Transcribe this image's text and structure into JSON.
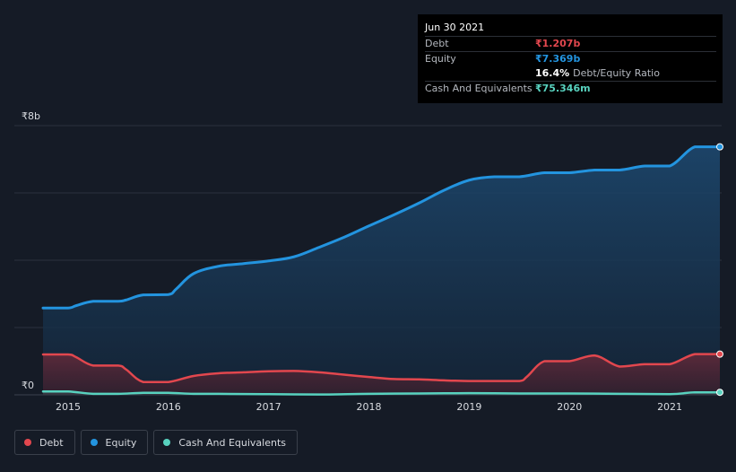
{
  "tooltip": {
    "date": "Jun 30 2021",
    "debt_label": "Debt",
    "debt_value": "₹1.207b",
    "equity_label": "Equity",
    "equity_value": "₹7.369b",
    "ratio_value": "16.4%",
    "ratio_label": "Debt/Equity Ratio",
    "cash_label": "Cash And Equivalents",
    "cash_value": "₹75.346m"
  },
  "colors": {
    "debt": "#e2474e",
    "equity": "#2394df",
    "cash": "#58d2bf"
  },
  "legend": [
    {
      "label": "Debt",
      "key": "debt"
    },
    {
      "label": "Equity",
      "key": "equity"
    },
    {
      "label": "Cash And Equivalents",
      "key": "cash"
    }
  ],
  "chart_data": {
    "type": "area",
    "title": "",
    "xlabel": "",
    "ylabel": "",
    "y_unit": "₹ billions",
    "ylim": [
      0,
      8
    ],
    "xlim": [
      2014.75,
      2021.5
    ],
    "y_tick_labels": [
      {
        "value": 8,
        "label": "₹8b"
      },
      {
        "value": 0,
        "label": "₹0"
      }
    ],
    "x_ticks": [
      2015,
      2016,
      2017,
      2018,
      2019,
      2020,
      2021
    ],
    "grid": true,
    "legend_position": "bottom-left",
    "series": [
      {
        "name": "Equity",
        "key": "equity",
        "points": [
          [
            2014.75,
            2.58
          ],
          [
            2015.0,
            2.58
          ],
          [
            2015.08,
            2.65
          ],
          [
            2015.25,
            2.78
          ],
          [
            2015.5,
            2.78
          ],
          [
            2015.58,
            2.82
          ],
          [
            2015.75,
            2.97
          ],
          [
            2016.0,
            2.98
          ],
          [
            2016.08,
            3.15
          ],
          [
            2016.25,
            3.6
          ],
          [
            2016.5,
            3.82
          ],
          [
            2016.75,
            3.9
          ],
          [
            2017.0,
            3.98
          ],
          [
            2017.25,
            4.1
          ],
          [
            2017.5,
            4.38
          ],
          [
            2017.75,
            4.68
          ],
          [
            2018.0,
            5.02
          ],
          [
            2018.25,
            5.35
          ],
          [
            2018.5,
            5.7
          ],
          [
            2018.75,
            6.08
          ],
          [
            2019.0,
            6.38
          ],
          [
            2019.25,
            6.48
          ],
          [
            2019.5,
            6.48
          ],
          [
            2019.75,
            6.6
          ],
          [
            2020.0,
            6.6
          ],
          [
            2020.25,
            6.68
          ],
          [
            2020.5,
            6.68
          ],
          [
            2020.75,
            6.8
          ],
          [
            2021.0,
            6.8
          ],
          [
            2021.25,
            7.37
          ],
          [
            2021.5,
            7.37
          ]
        ]
      },
      {
        "name": "Debt",
        "key": "debt",
        "points": [
          [
            2014.75,
            1.2
          ],
          [
            2015.0,
            1.2
          ],
          [
            2015.08,
            1.12
          ],
          [
            2015.25,
            0.87
          ],
          [
            2015.5,
            0.87
          ],
          [
            2015.58,
            0.75
          ],
          [
            2015.75,
            0.38
          ],
          [
            2016.0,
            0.38
          ],
          [
            2016.25,
            0.56
          ],
          [
            2016.5,
            0.64
          ],
          [
            2016.75,
            0.67
          ],
          [
            2017.0,
            0.7
          ],
          [
            2017.25,
            0.71
          ],
          [
            2017.5,
            0.67
          ],
          [
            2017.75,
            0.6
          ],
          [
            2018.0,
            0.53
          ],
          [
            2018.25,
            0.47
          ],
          [
            2018.5,
            0.46
          ],
          [
            2018.75,
            0.43
          ],
          [
            2019.0,
            0.41
          ],
          [
            2019.25,
            0.41
          ],
          [
            2019.5,
            0.41
          ],
          [
            2019.58,
            0.55
          ],
          [
            2019.75,
            1.0
          ],
          [
            2020.0,
            1.0
          ],
          [
            2020.25,
            1.17
          ],
          [
            2020.5,
            0.84
          ],
          [
            2020.75,
            0.91
          ],
          [
            2021.0,
            0.91
          ],
          [
            2021.25,
            1.21
          ],
          [
            2021.5,
            1.21
          ]
        ]
      },
      {
        "name": "Cash And Equivalents",
        "key": "cash",
        "points": [
          [
            2014.75,
            0.1
          ],
          [
            2015.0,
            0.1
          ],
          [
            2015.25,
            0.03
          ],
          [
            2015.5,
            0.03
          ],
          [
            2015.75,
            0.06
          ],
          [
            2016.0,
            0.06
          ],
          [
            2016.25,
            0.03
          ],
          [
            2016.5,
            0.03
          ],
          [
            2017.0,
            0.02
          ],
          [
            2017.5,
            0.01
          ],
          [
            2018.0,
            0.03
          ],
          [
            2018.5,
            0.04
          ],
          [
            2019.0,
            0.05
          ],
          [
            2019.5,
            0.04
          ],
          [
            2020.0,
            0.04
          ],
          [
            2020.5,
            0.03
          ],
          [
            2021.0,
            0.02
          ],
          [
            2021.25,
            0.075
          ],
          [
            2021.5,
            0.075
          ]
        ]
      }
    ]
  }
}
